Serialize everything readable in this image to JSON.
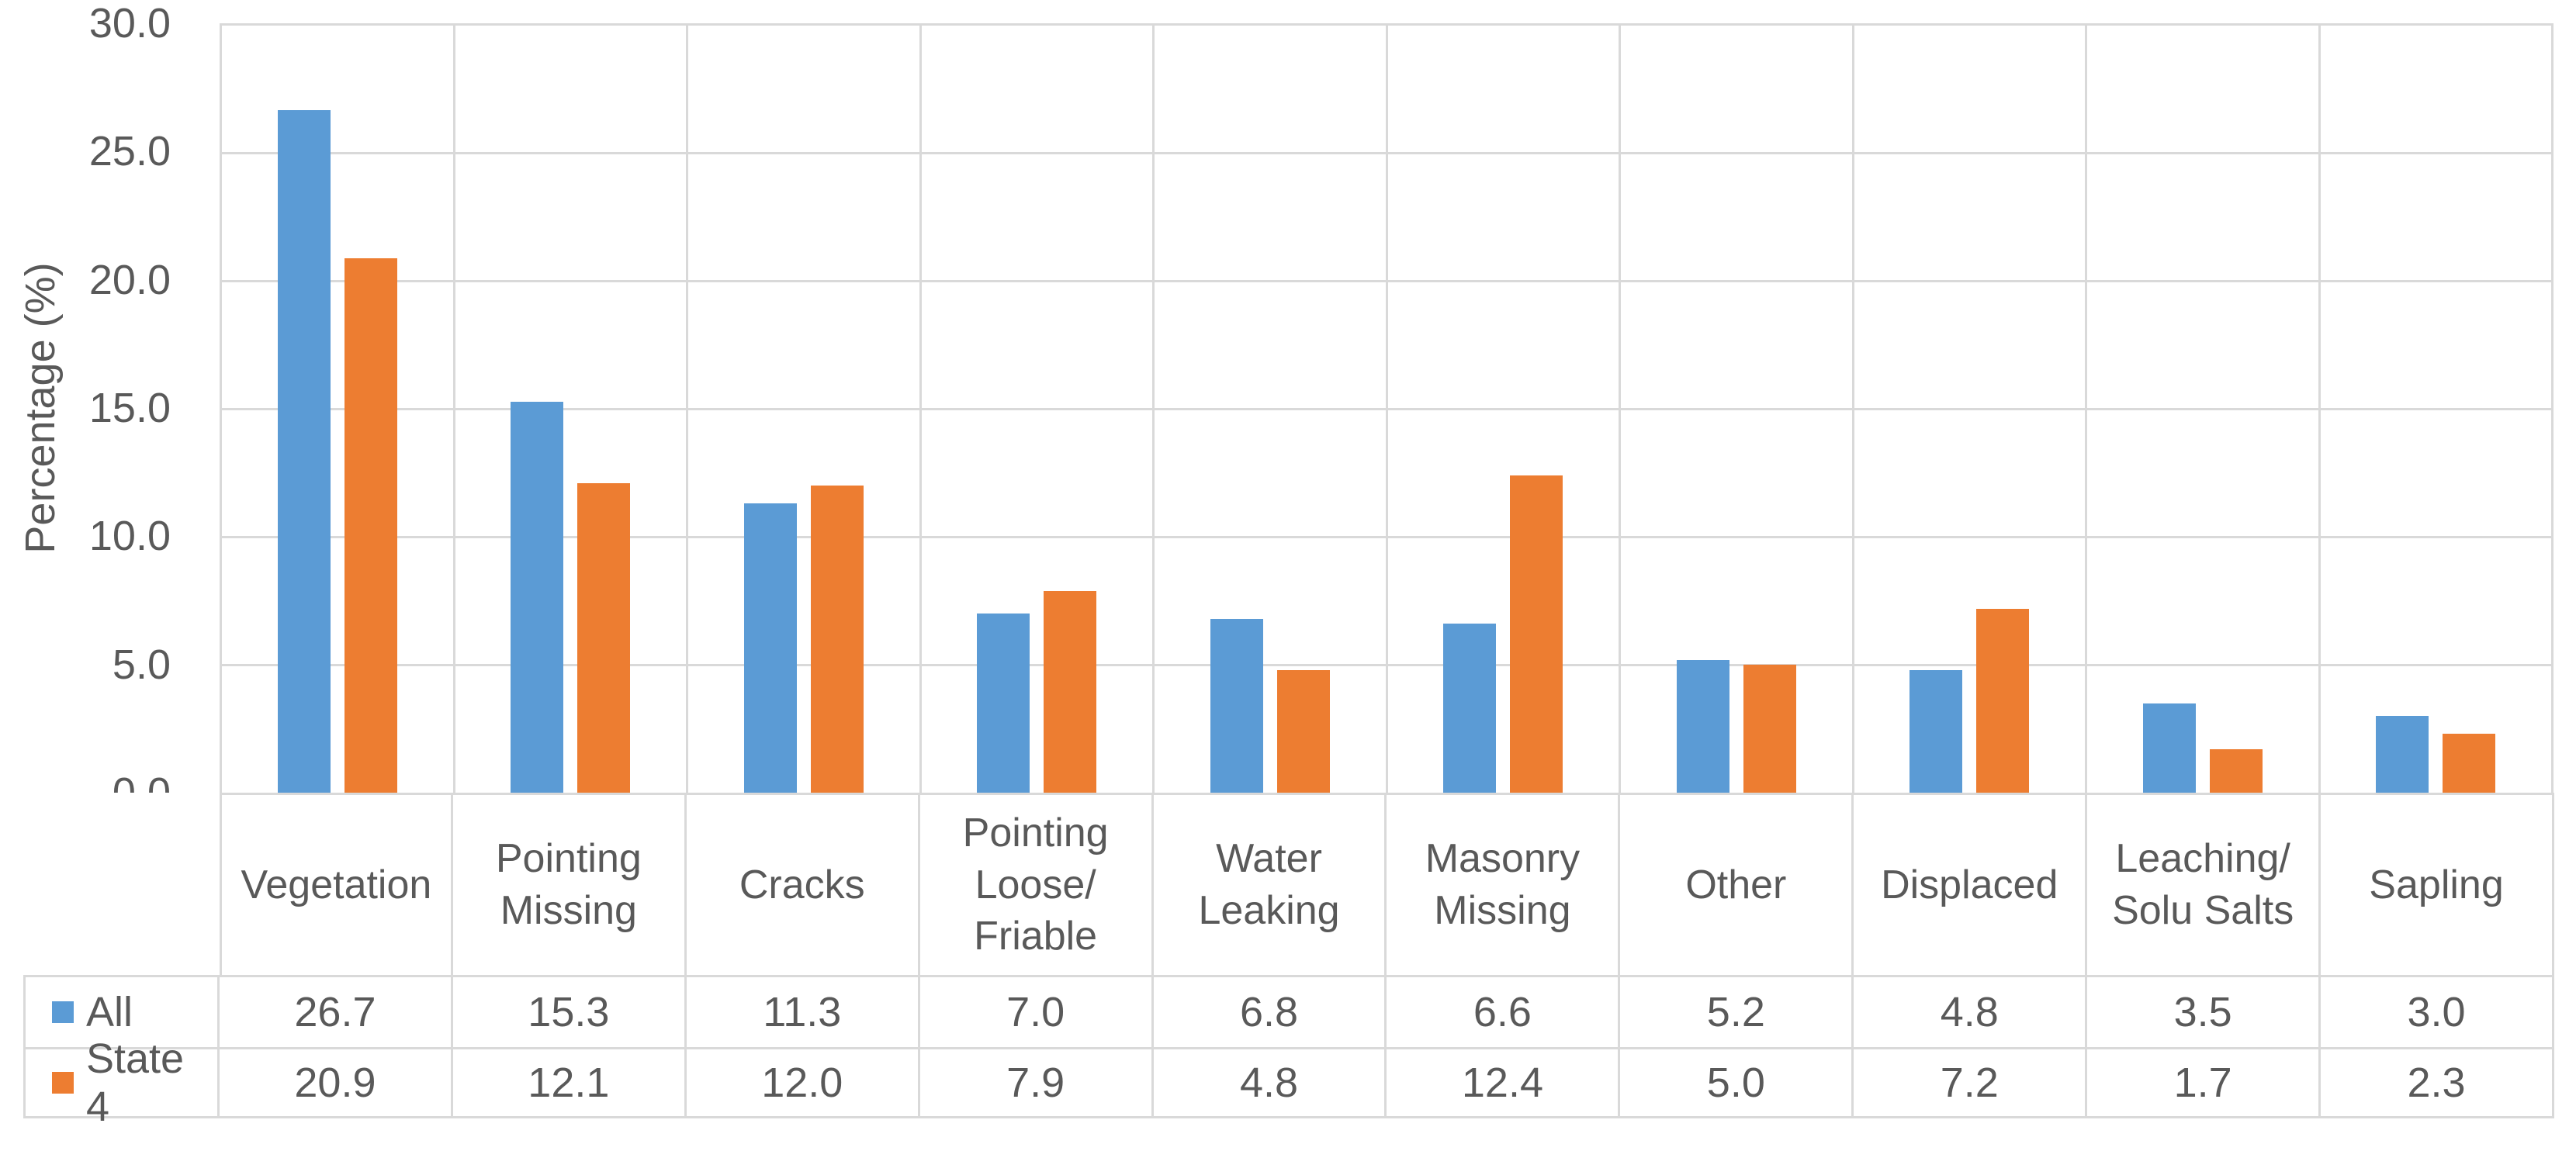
{
  "chart_data": {
    "type": "bar",
    "title": "",
    "ylabel": "Percentage (%)",
    "xlabel": "",
    "ylim": [
      0,
      30
    ],
    "ytick_step": 5,
    "ytick_labels": [
      "30.0",
      "25.0",
      "20.0",
      "15.0",
      "10.0",
      "5.0",
      "0.0"
    ],
    "grid": true,
    "legend_position": "data-table-left",
    "categories": [
      "Vegetation",
      "Pointing Missing",
      "Cracks",
      "Pointing Loose/Friable",
      "Water Leaking",
      "Masonry Missing",
      "Other",
      "Displaced",
      "Leaching/Solu Salts",
      "Sapling"
    ],
    "category_display_labels": [
      "Vegetation",
      "Pointing\nMissing",
      "Cracks",
      "Pointing\nLoose/\nFriable",
      "Water\nLeaking",
      "Masonry\nMissing",
      "Other",
      "Displaced",
      "Leaching/\nSolu Salts",
      "Sapling"
    ],
    "series": [
      {
        "name": "All",
        "color": "#5B9BD5",
        "values": [
          26.7,
          15.3,
          11.3,
          7.0,
          6.8,
          6.6,
          5.2,
          4.8,
          3.5,
          3.0
        ]
      },
      {
        "name": "State 4",
        "color": "#ED7D31",
        "values": [
          20.9,
          12.1,
          12.0,
          7.9,
          4.8,
          12.4,
          5.0,
          7.2,
          1.7,
          2.3
        ]
      }
    ],
    "value_decimals": 1
  },
  "colors": {
    "gridline": "#D9D9D9",
    "axis_text": "#595959",
    "background": "#FFFFFF"
  }
}
